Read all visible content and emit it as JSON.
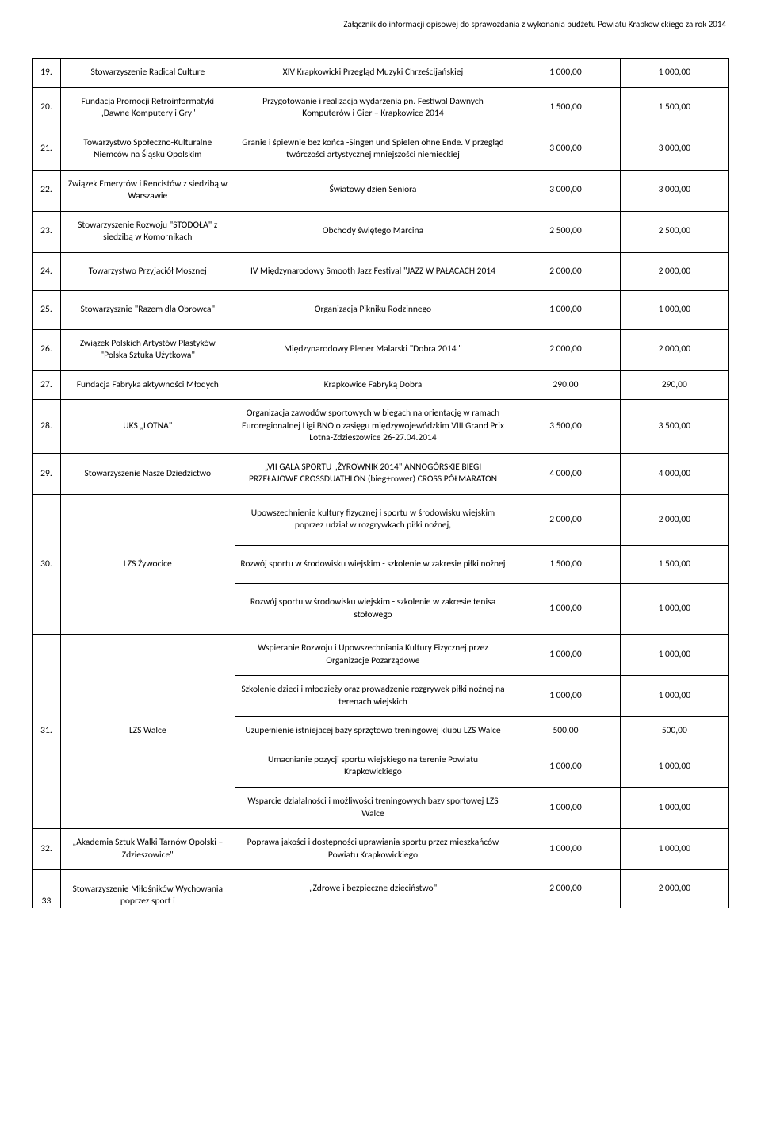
{
  "header": "Załącznik do informacji opisowej do sprawozdania z wykonania budżetu Powiatu Krapkowickiego za rok 2014",
  "rows": [
    {
      "num": "19.",
      "org": "Stowarzyszenie Radical Culture",
      "task": "XIV Krapkowicki Przegląd Muzyki Chrześcijańskiej",
      "a1": "1 000,00",
      "a2": "1 000,00"
    },
    {
      "num": "20.",
      "org": "Fundacja Promocji Retroinformatyki „Dawne Komputery i Gry\"",
      "task": "Przygotowanie i realizacja wydarzenia pn. Festiwal Dawnych Komputerów i Gier – Krapkowice 2014",
      "a1": "1 500,00",
      "a2": "1 500,00"
    },
    {
      "num": "21.",
      "org": "Towarzystwo Społeczno-Kulturalne Niemców na Śląsku Opolskim",
      "task": "Granie i śpiewnie bez końca -Singen und Spielen ohne Ende. V przegląd twórczości artystycznej mniejszości niemieckiej",
      "a1": "3 000,00",
      "a2": "3 000,00"
    },
    {
      "num": "22.",
      "org": "Związek Emerytów i Rencistów z siedzibą w Warszawie",
      "task": "Światowy dzień Seniora",
      "a1": "3 000,00",
      "a2": "3 000,00"
    },
    {
      "num": "23.",
      "org": "Stowarzyszenie Rozwoju \"STODOŁA\" z siedzibą w Komornikach",
      "task": "Obchody świętego Marcina",
      "a1": "2 500,00",
      "a2": "2 500,00"
    },
    {
      "num": "24.",
      "org": "Towarzystwo Przyjaciół Mosznej",
      "task": "IV Międzynarodowy Smooth Jazz Festival \"JAZZ  W PAŁACACH 2014",
      "a1": "2 000,00",
      "a2": "2 000,00"
    },
    {
      "num": "25.",
      "org": "Stowarzysznie \"Razem dla Obrowca\"",
      "task": "Organizacja Pikniku Rodzinnego",
      "a1": "1 000,00",
      "a2": "1 000,00"
    },
    {
      "num": "26.",
      "org": "Związek Polskich Artystów Plastyków  \"Polska Sztuka Użytkowa\"",
      "task": "Międzynarodowy Plener Malarski \"Dobra 2014 \"",
      "a1": "2 000,00",
      "a2": "2 000,00"
    },
    {
      "num": "27.",
      "org": "Fundacja Fabryka aktywności Młodych",
      "task": "Krapkowice Fabryką Dobra",
      "a1": "290,00",
      "a2": "290,00"
    },
    {
      "num": "28.",
      "org": "UKS  „LOTNA\"",
      "task": "Organizacja zawodów sportowych w biegach na orientację w ramach Euroregionalnej Ligi BNO  o zasięgu międzywojewódzkim VIII Grand Prix Lotna-Zdzieszowice 26-27.04.2014",
      "a1": "3 500,00",
      "a2": "3 500,00"
    },
    {
      "num": "29.",
      "org": "Stowarzyszenie             Nasze Dziedzictwo",
      "task": "„VII GALA SPORTU „ŻYROWNIK 2014\" ANNOGÓRSKIE BIEGI PRZEŁAJOWE CROSSDUATHLON (bieg+rower) CROSS PÓŁMARATON",
      "a1": "4 000,00",
      "a2": "4 000,00"
    }
  ],
  "row30": {
    "num": "30.",
    "org": "LZS Żywocice",
    "tasks": [
      {
        "task": "Upowszechnienie kultury fizycznej i sportu w środowisku wiejskim poprzez udział w rozgrywkach piłki nożnej,",
        "a1": "2 000,00",
        "a2": "2 000,00"
      },
      {
        "task": "Rozwój sportu w środowisku wiejskim - szkolenie w zakresie piłki nożnej",
        "a1": "1 500,00",
        "a2": "1 500,00"
      },
      {
        "task": "Rozwój sportu w środowisku wiejskim - szkolenie w zakresie tenisa stołowego",
        "a1": "1 000,00",
        "a2": "1 000,00"
      }
    ]
  },
  "row31": {
    "num": "31.",
    "org": "LZS Walce",
    "tasks": [
      {
        "task": "Wspieranie Rozwoju i Upowszechniania Kultury Fizycznej przez Organizacje Pozarządowe",
        "a1": "1 000,00",
        "a2": "1 000,00"
      },
      {
        "task": "Szkolenie dzieci i młodzieży oraz prowadzenie rozgrywek piłki nożnej na terenach wiejskich",
        "a1": "1 000,00",
        "a2": "1 000,00"
      },
      {
        "task": "Uzupełnienie istniejacej bazy sprzętowo treningowej klubu LZS Walce",
        "a1": "500,00",
        "a2": "500,00"
      },
      {
        "task": "Umacnianie pozycji sportu wiejskiego na terenie Powiatu Krapkowickiego",
        "a1": "1 000,00",
        "a2": "1 000,00"
      },
      {
        "task": "Wsparcie działalności i możliwości treningowych bazy sportowej LZS Walce",
        "a1": "1 000,00",
        "a2": "1 000,00"
      }
    ]
  },
  "row32": {
    "num": "32.",
    "org": "„Akademia Sztuk Walki Tarnów Opolski – Zdzieszowice\"",
    "task": "Poprawa jakości i dostępności uprawiania sportu przez mieszkańców Powiatu Krapkowickiego",
    "a1": "1 000,00",
    "a2": "1 000,00"
  },
  "row33": {
    "num": "33",
    "org": "Stowarzyszenie Miłośników Wychowania poprzez sport i",
    "task": "„Zdrowe i bezpieczne dzieciństwo\"",
    "a1": "2 000,00",
    "a2": "2 000,00"
  }
}
